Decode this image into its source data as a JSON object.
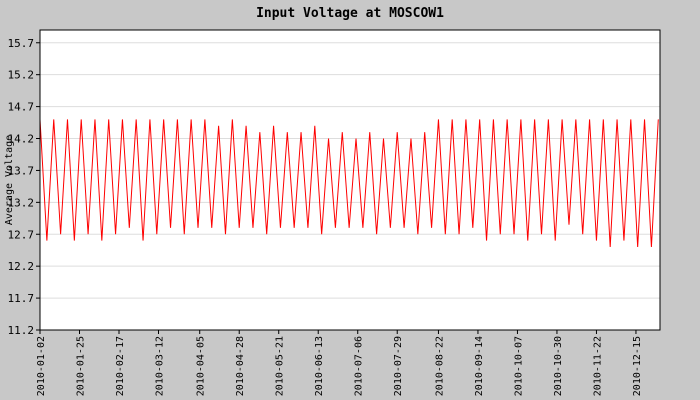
{
  "chart_data": {
    "type": "line",
    "title": "Input Voltage at MOSCOW1",
    "y_label": "Average Voltage",
    "color": "#ff0000",
    "grid": true,
    "x": [
      "2010-01-02",
      "2010-01-06",
      "2010-01-10",
      "2010-01-14",
      "2010-01-18",
      "2010-01-22",
      "2010-01-26",
      "2010-01-30",
      "2010-02-03",
      "2010-02-07",
      "2010-02-11",
      "2010-02-15",
      "2010-02-19",
      "2010-02-23",
      "2010-02-27",
      "2010-03-03",
      "2010-03-07",
      "2010-03-11",
      "2010-03-15",
      "2010-03-19",
      "2010-03-23",
      "2010-03-27",
      "2010-03-31",
      "2010-04-04",
      "2010-04-08",
      "2010-04-12",
      "2010-04-16",
      "2010-04-20",
      "2010-04-24",
      "2010-04-28",
      "2010-05-02",
      "2010-05-06",
      "2010-05-10",
      "2010-05-14",
      "2010-05-18",
      "2010-05-22",
      "2010-05-26",
      "2010-05-30",
      "2010-06-03",
      "2010-06-07",
      "2010-06-11",
      "2010-06-15",
      "2010-06-19",
      "2010-06-23",
      "2010-06-27",
      "2010-07-01",
      "2010-07-05",
      "2010-07-09",
      "2010-07-13",
      "2010-07-17",
      "2010-07-21",
      "2010-07-25",
      "2010-07-29",
      "2010-08-02",
      "2010-08-06",
      "2010-08-10",
      "2010-08-14",
      "2010-08-18",
      "2010-08-22",
      "2010-08-26",
      "2010-08-30",
      "2010-09-03",
      "2010-09-07",
      "2010-09-11",
      "2010-09-15",
      "2010-09-19",
      "2010-09-23",
      "2010-09-27",
      "2010-10-01",
      "2010-10-05",
      "2010-10-09",
      "2010-10-13",
      "2010-10-17",
      "2010-10-21",
      "2010-10-25",
      "2010-10-29",
      "2010-11-02",
      "2010-11-06",
      "2010-11-10",
      "2010-11-14",
      "2010-11-18",
      "2010-11-22",
      "2010-11-26",
      "2010-11-30",
      "2010-12-04",
      "2010-12-08",
      "2010-12-12",
      "2010-12-16",
      "2010-12-20",
      "2010-12-24",
      "2010-12-28"
    ],
    "values": [
      14.5,
      12.6,
      14.5,
      12.7,
      14.5,
      12.6,
      14.5,
      12.7,
      14.5,
      12.6,
      14.5,
      12.7,
      14.5,
      12.8,
      14.5,
      12.6,
      14.5,
      12.7,
      14.5,
      12.8,
      14.5,
      12.7,
      14.5,
      12.8,
      14.5,
      12.8,
      14.4,
      12.7,
      14.5,
      12.8,
      14.4,
      12.8,
      14.3,
      12.7,
      14.4,
      12.8,
      14.3,
      12.8,
      14.3,
      12.8,
      14.4,
      12.7,
      14.2,
      12.8,
      14.3,
      12.8,
      14.2,
      12.8,
      14.3,
      12.7,
      14.2,
      12.8,
      14.3,
      12.8,
      14.2,
      12.7,
      14.3,
      12.8,
      14.5,
      12.7,
      14.5,
      12.7,
      14.5,
      12.8,
      14.5,
      12.6,
      14.5,
      12.7,
      14.5,
      12.7,
      14.5,
      12.6,
      14.5,
      12.7,
      14.5,
      12.6,
      14.5,
      12.85,
      14.5,
      12.7,
      14.5,
      12.6,
      14.5,
      12.5,
      14.5,
      12.6,
      14.5,
      12.5,
      14.5,
      12.5,
      14.5
    ],
    "xlim": [
      "2010-01-02",
      "2010-12-29"
    ],
    "xticks": [
      "2010-01-02",
      "2010-01-25",
      "2010-02-17",
      "2010-03-12",
      "2010-04-05",
      "2010-04-28",
      "2010-05-21",
      "2010-06-13",
      "2010-07-06",
      "2010-07-29",
      "2010-08-22",
      "2010-09-14",
      "2010-10-07",
      "2010-10-30",
      "2010-11-22",
      "2010-12-15"
    ],
    "ylim": [
      11.2,
      15.9
    ],
    "yticks": [
      11.2,
      11.7,
      12.2,
      12.7,
      13.2,
      13.7,
      14.2,
      14.7,
      15.2,
      15.7
    ]
  }
}
